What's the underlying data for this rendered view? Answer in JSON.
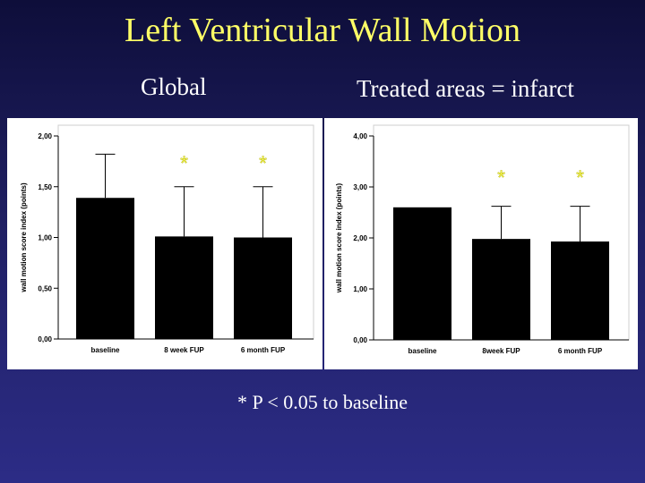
{
  "slide": {
    "title": "Left Ventricular Wall Motion",
    "subtitle_left": "Global",
    "subtitle_right": "Treated areas = infarct",
    "footnote": "* P < 0.05 to baseline"
  },
  "colors": {
    "bar": "#000000",
    "asterisk": "#ffff66",
    "panel_bg": "#ffffff"
  },
  "chart_data": [
    {
      "type": "bar",
      "title": "",
      "categories": [
        "baseline",
        "8 week FUP",
        "6 month FUP"
      ],
      "values": [
        1.39,
        1.01,
        1.0
      ],
      "error_upper": [
        1.82,
        1.5,
        1.5
      ],
      "error_lower": [
        null,
        null,
        null
      ],
      "significance": [
        "",
        "*",
        "*"
      ],
      "ylabel": "wall motion score index (points)",
      "xlabel": "",
      "ylim": [
        0,
        2
      ],
      "yticks": [
        0,
        0.5,
        1.0,
        1.5,
        2.0
      ],
      "ytick_labels": [
        "0,00",
        "0,50",
        "1,00",
        "1,50",
        "2,00"
      ],
      "grid": false
    },
    {
      "type": "bar",
      "title": "",
      "categories": [
        "baseline",
        "8week FUP",
        "6 month FUP"
      ],
      "values": [
        2.6,
        1.98,
        1.93
      ],
      "error_upper": [
        null,
        2.62,
        2.62
      ],
      "error_lower": [
        null,
        null,
        null
      ],
      "significance": [
        "",
        "*",
        "*"
      ],
      "ylabel": "wall motion score index (points)",
      "xlabel": "",
      "ylim": [
        0,
        4
      ],
      "yticks": [
        0,
        1,
        2,
        3,
        4
      ],
      "ytick_labels": [
        "0,00",
        "1,00",
        "2,00",
        "3,00",
        "4,00"
      ],
      "grid": false
    }
  ]
}
